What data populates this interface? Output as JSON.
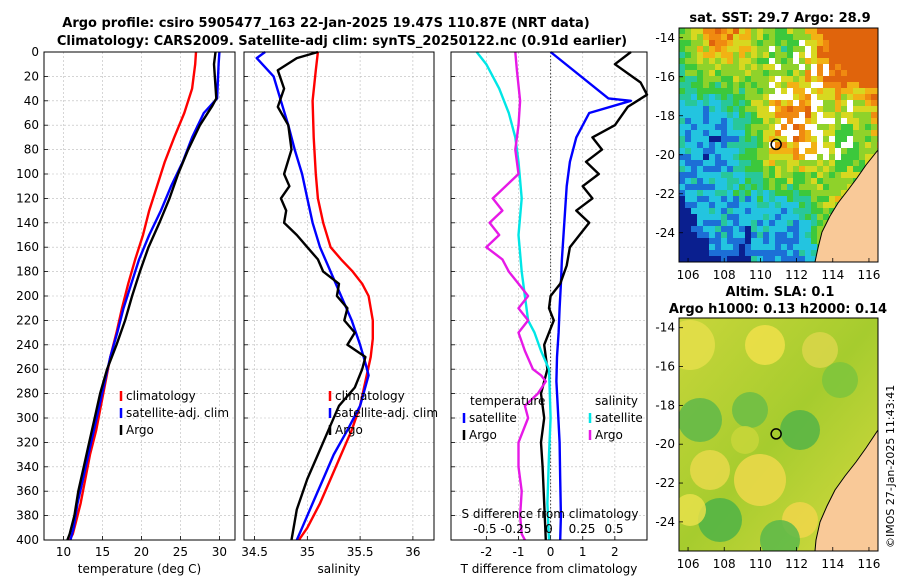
{
  "titles": {
    "line1": "Argo profile: csiro 5905477_163 22-Jan-2025 19.47S 110.87E (NRT data)",
    "line2": "Climatology: CARS2009. Satellite-adj clim: synTS_20250122.nc (0.91d earlier)"
  },
  "colors": {
    "climatology": "#ff0000",
    "satellite": "#0000ff",
    "argo": "#000000",
    "sat_salinity": "#00e6e6",
    "argo_salinity_diff": "#e619e6"
  },
  "chart_data": [
    {
      "type": "line",
      "id": "temperature",
      "xlabel": "temperature (deg C)",
      "ylabel": "",
      "xlim": [
        7.5,
        32
      ],
      "ylim": [
        400,
        0
      ],
      "xticks": [
        "10",
        "15",
        "20",
        "25",
        "30"
      ],
      "yticks": [
        "0",
        "20",
        "40",
        "60",
        "80",
        "100",
        "120",
        "140",
        "160",
        "180",
        "200",
        "220",
        "240",
        "260",
        "280",
        "300",
        "320",
        "340",
        "360",
        "380",
        "400"
      ],
      "legend": [
        "climatology",
        "satellite-adj. clim",
        "Argo"
      ],
      "legend_position": "lower-right",
      "series": [
        {
          "name": "climatology",
          "color": "#ff0000",
          "x": [
            27.0,
            26.9,
            26.5,
            25.5,
            24.2,
            23.0,
            22.0,
            21.0,
            20.2,
            19.2,
            18.3,
            17.5,
            16.8,
            16.0,
            15.4,
            14.8,
            14.2,
            13.4,
            12.8,
            12.2,
            11.6,
            11.2,
            10.8
          ],
          "y": [
            0,
            10,
            30,
            50,
            70,
            90,
            110,
            130,
            150,
            170,
            190,
            210,
            230,
            250,
            270,
            290,
            310,
            330,
            350,
            370,
            385,
            395,
            400
          ]
        },
        {
          "name": "satellite-adj. clim",
          "color": "#0000ff",
          "x": [
            30.0,
            29.9,
            29.7,
            28.0,
            26.5,
            25.3,
            23.8,
            22.5,
            21.0,
            19.7,
            18.7,
            17.7,
            16.9,
            16.0,
            15.3,
            14.6,
            13.9,
            13.2,
            12.5,
            11.8,
            11.3,
            10.9
          ],
          "y": [
            0,
            10,
            38,
            50,
            70,
            90,
            110,
            130,
            150,
            170,
            190,
            210,
            230,
            250,
            270,
            290,
            310,
            330,
            350,
            370,
            390,
            400
          ]
        },
        {
          "name": "Argo",
          "color": "#000000",
          "x": [
            29.5,
            29.3,
            29.6,
            29.1,
            27.5,
            26.0,
            24.7,
            23.6,
            22.3,
            20.9,
            19.8,
            18.8,
            17.9,
            16.8,
            15.6,
            14.7,
            14.0,
            13.3,
            12.6,
            11.9,
            11.4,
            10.8,
            10.5
          ],
          "y": [
            0,
            10,
            38,
            44,
            60,
            80,
            100,
            120,
            140,
            160,
            180,
            200,
            220,
            240,
            260,
            280,
            300,
            320,
            340,
            360,
            380,
            395,
            400
          ]
        }
      ]
    },
    {
      "type": "line",
      "id": "salinity",
      "xlabel": "salinity",
      "xlim": [
        34.4,
        36.2
      ],
      "ylim": [
        400,
        0
      ],
      "xticks": [
        "34.5",
        "35",
        "35.5",
        "36"
      ],
      "legend": [
        "climatology",
        "satellite-adj. clim",
        "Argo"
      ],
      "legend_position": "lower-right",
      "series": [
        {
          "name": "climatology",
          "color": "#ff0000",
          "x": [
            35.1,
            35.08,
            35.05,
            35.06,
            35.08,
            35.1,
            35.15,
            35.22,
            35.32,
            35.43,
            35.52,
            35.58,
            35.6,
            35.62,
            35.62,
            35.6,
            35.55,
            35.5,
            35.42,
            35.32,
            35.22,
            35.12,
            35.0,
            34.92
          ],
          "y": [
            0,
            15,
            40,
            70,
            100,
            120,
            140,
            160,
            170,
            180,
            190,
            200,
            210,
            220,
            235,
            250,
            270,
            290,
            310,
            330,
            350,
            370,
            390,
            400
          ]
        },
        {
          "name": "satellite-adj. clim",
          "color": "#0000ff",
          "x": [
            34.6,
            34.52,
            34.68,
            34.75,
            34.82,
            34.88,
            34.95,
            35.0,
            35.05,
            35.12,
            35.22,
            35.32,
            35.42,
            35.5,
            35.55,
            35.58,
            35.5,
            35.38,
            35.25,
            35.15,
            35.05,
            34.95,
            34.9
          ],
          "y": [
            0,
            5,
            20,
            40,
            60,
            80,
            100,
            120,
            140,
            160,
            180,
            200,
            220,
            240,
            255,
            265,
            290,
            310,
            330,
            350,
            370,
            390,
            400
          ]
        },
        {
          "name": "Argo",
          "color": "#000000",
          "x": [
            35.1,
            34.9,
            34.72,
            34.78,
            34.72,
            34.82,
            34.85,
            34.78,
            34.83,
            34.75,
            34.8,
            34.78,
            34.9,
            35.0,
            35.1,
            35.15,
            35.3,
            35.28,
            35.38,
            35.35,
            35.45,
            35.38,
            35.55,
            35.52,
            35.45,
            35.3,
            35.2,
            35.1,
            35.0,
            34.9,
            34.85
          ],
          "y": [
            0,
            5,
            15,
            30,
            45,
            60,
            80,
            100,
            110,
            120,
            130,
            140,
            150,
            160,
            170,
            180,
            190,
            200,
            210,
            220,
            230,
            240,
            250,
            260,
            275,
            290,
            310,
            330,
            350,
            375,
            400
          ]
        }
      ]
    },
    {
      "type": "line",
      "id": "difference",
      "xlabel": "T difference from climatology",
      "xlabel_top": "S difference from climatology",
      "xlim": [
        -3.1,
        3.0
      ],
      "ylim": [
        400,
        0
      ],
      "xticks": [
        "-2",
        "-1",
        "0",
        "1",
        "2"
      ],
      "xticks_salinity": [
        "-0.5",
        "-0.25",
        "0",
        "0.25",
        "0.5"
      ],
      "legend_temperature": {
        "heading": "temperature",
        "items": [
          "satellite",
          "Argo"
        ]
      },
      "legend_salinity": {
        "heading": "salinity",
        "items": [
          "satellite",
          "Argo"
        ]
      },
      "legend_position": "lower-center",
      "series": [
        {
          "name": "T satellite",
          "color": "#0000ff",
          "x": [
            0.0,
            1.8,
            2.5,
            1.2,
            0.8,
            0.6,
            0.5,
            0.45,
            0.4,
            0.35,
            0.32,
            0.28,
            0.25,
            0.2,
            0.18,
            0.22,
            0.28,
            0.3,
            0.32,
            0.3
          ],
          "y": [
            0,
            38,
            40,
            50,
            70,
            90,
            110,
            130,
            150,
            170,
            190,
            210,
            230,
            250,
            270,
            290,
            320,
            350,
            380,
            400
          ]
        },
        {
          "name": "T Argo",
          "color": "#000000",
          "x": [
            2.5,
            2.0,
            2.8,
            3.0,
            2.4,
            2.0,
            1.3,
            1.6,
            1.1,
            1.5,
            1.0,
            1.3,
            0.8,
            1.2,
            0.9,
            0.6,
            0.5,
            0.3,
            0.0,
            -0.05,
            0.1,
            -0.2,
            -0.1,
            -0.3,
            -0.2,
            -0.3,
            -0.25,
            -0.2,
            -0.15
          ],
          "y": [
            0,
            10,
            25,
            35,
            45,
            60,
            70,
            80,
            90,
            100,
            110,
            120,
            130,
            140,
            150,
            160,
            175,
            190,
            200,
            210,
            220,
            240,
            260,
            280,
            300,
            320,
            340,
            370,
            400
          ]
        },
        {
          "name": "S satellite",
          "color": "#00e6e6",
          "x": [
            -2.3,
            -2.0,
            -1.6,
            -1.3,
            -1.1,
            -1.0,
            -0.9,
            -1.0,
            -0.9,
            -0.8,
            -0.7,
            -0.5,
            -0.3,
            -0.05,
            0.0,
            -0.05,
            -0.1,
            -0.05
          ],
          "y": [
            0,
            10,
            30,
            50,
            70,
            90,
            120,
            150,
            180,
            200,
            220,
            230,
            245,
            260,
            300,
            330,
            370,
            400
          ]
        },
        {
          "name": "S Argo",
          "color": "#e619e6",
          "x": [
            -1.1,
            -1.05,
            -0.95,
            -1.0,
            -1.1,
            -1.0,
            -1.4,
            -1.8,
            -1.5,
            -1.9,
            -1.6,
            -2.0,
            -1.5,
            -1.3,
            -1.0,
            -0.7,
            -1.0,
            -0.7,
            -1.0,
            -0.8,
            -0.55,
            -0.3,
            -0.15,
            -0.4,
            -0.8,
            -0.7,
            -1.0,
            -1.0,
            -0.9,
            -0.95,
            -0.9,
            -0.8
          ],
          "y": [
            0,
            15,
            40,
            60,
            80,
            100,
            110,
            120,
            130,
            140,
            150,
            160,
            170,
            180,
            190,
            200,
            210,
            220,
            230,
            245,
            260,
            265,
            270,
            280,
            290,
            300,
            320,
            340,
            360,
            380,
            395,
            400
          ]
        }
      ]
    },
    {
      "type": "heatmap",
      "id": "sst_map",
      "title": "sat. SST: 29.7  Argo: 28.9",
      "xlim": [
        105.5,
        116.5
      ],
      "ylim": [
        -25.5,
        -13.5
      ],
      "xticks": [
        "106",
        "108",
        "110",
        "112",
        "114",
        "116"
      ],
      "yticks": [
        "-14",
        "-16",
        "-18",
        "-20",
        "-22",
        "-24"
      ],
      "marker": {
        "lon": 110.87,
        "lat": -19.47
      }
    },
    {
      "type": "heatmap",
      "id": "sla_map",
      "title": "Altim. SLA: 0.1",
      "subtitle": "Argo h1000: 0.13  h2000: 0.14",
      "xlim": [
        105.5,
        116.5
      ],
      "ylim": [
        -25.5,
        -13.5
      ],
      "xticks": [
        "106",
        "108",
        "110",
        "112",
        "114",
        "116"
      ],
      "yticks": [
        "-14",
        "-16",
        "-18",
        "-20",
        "-22",
        "-24"
      ],
      "marker": {
        "lon": 110.87,
        "lat": -19.47
      }
    }
  ],
  "timestamp": "©IMOS 27-Jan-2025 11:43:41"
}
